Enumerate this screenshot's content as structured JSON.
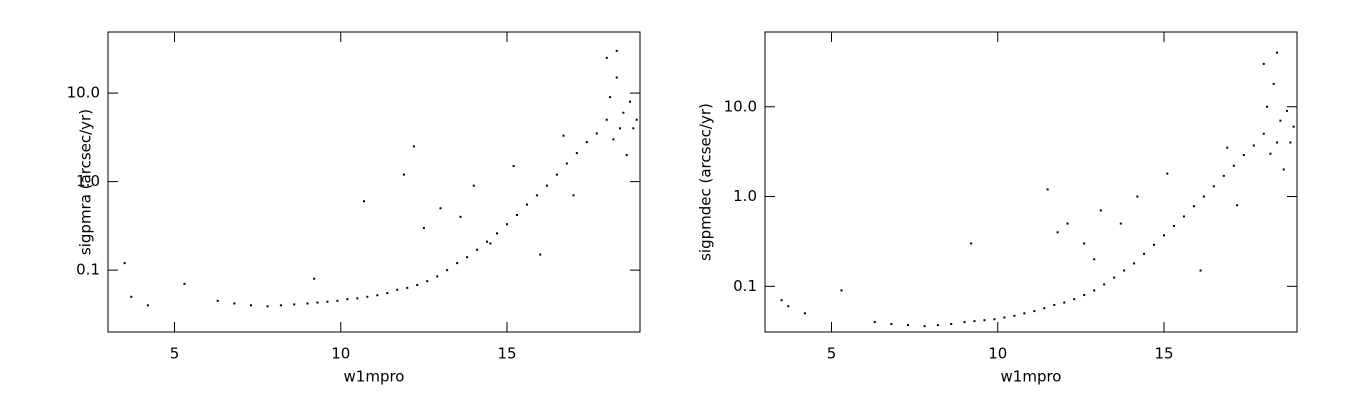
{
  "chart_data": [
    {
      "type": "scatter",
      "x_label": "w1mpro",
      "y_label": "sigpmra (arcsec/yr)",
      "log_y": true,
      "color": "#000000",
      "xlim": [
        3,
        19
      ],
      "xticks": [
        5,
        10,
        15
      ],
      "ylim": [
        0.02,
        49
      ],
      "yticks": [
        0.1,
        {
          "value": 1,
          "label": "1.0"
        },
        {
          "value": 10,
          "label": "10.0"
        }
      ],
      "x": [
        3.5,
        3.7,
        4.2,
        5.3,
        6.3,
        6.8,
        7.3,
        7.8,
        8.2,
        8.6,
        9.0,
        9.3,
        9.6,
        9.9,
        10.2,
        10.5,
        10.8,
        11.1,
        11.4,
        11.7,
        12.0,
        12.3,
        12.6,
        12.9,
        13.2,
        13.5,
        13.8,
        14.1,
        14.4,
        14.7,
        15.0,
        15.3,
        15.6,
        15.9,
        16.2,
        16.5,
        16.8,
        17.1,
        17.4,
        17.7,
        18.0,
        18.1,
        18.2,
        18.3,
        18.4,
        18.5,
        18.6,
        18.7,
        18.8,
        18.9,
        10.7,
        11.9,
        12.5,
        13.0,
        13.6,
        14.0,
        14.5,
        15.2,
        16.0,
        17.0,
        12.2,
        9.2,
        16.7,
        18.0,
        18.3
      ],
      "y": [
        0.12,
        0.05,
        0.04,
        0.07,
        0.045,
        0.042,
        0.04,
        0.039,
        0.04,
        0.041,
        0.042,
        0.043,
        0.044,
        0.045,
        0.047,
        0.048,
        0.05,
        0.052,
        0.055,
        0.06,
        0.063,
        0.068,
        0.075,
        0.085,
        0.1,
        0.12,
        0.14,
        0.17,
        0.21,
        0.26,
        0.33,
        0.42,
        0.55,
        0.7,
        0.9,
        1.2,
        1.6,
        2.1,
        2.8,
        3.5,
        5,
        9,
        3,
        15,
        4,
        6,
        2,
        8,
        4,
        5,
        0.6,
        1.2,
        0.3,
        0.5,
        0.4,
        0.9,
        0.2,
        1.5,
        0.15,
        0.7,
        2.5,
        0.08,
        3.3,
        25,
        30
      ]
    },
    {
      "type": "scatter",
      "x_label": "w1mpro",
      "y_label": "sigpmdec (arcsec/yr)",
      "log_y": true,
      "color": "#000000",
      "xlim": [
        3,
        19
      ],
      "xticks": [
        5,
        10,
        15
      ],
      "ylim": [
        0.031,
        68
      ],
      "yticks": [
        0.1,
        {
          "value": 1,
          "label": "1.0"
        },
        {
          "value": 10,
          "label": "10.0"
        }
      ],
      "x": [
        3.5,
        3.7,
        4.2,
        5.3,
        6.3,
        6.8,
        7.3,
        7.8,
        8.2,
        8.6,
        9.0,
        9.3,
        9.6,
        9.9,
        10.2,
        10.5,
        10.8,
        11.1,
        11.4,
        11.7,
        12.0,
        12.3,
        12.6,
        12.9,
        13.2,
        13.5,
        13.8,
        14.1,
        14.4,
        14.7,
        15.0,
        15.3,
        15.6,
        15.9,
        16.2,
        16.5,
        16.8,
        17.1,
        17.4,
        17.7,
        18.0,
        18.1,
        18.2,
        18.3,
        18.4,
        18.5,
        18.6,
        18.7,
        18.8,
        18.9,
        11.5,
        12.1,
        12.6,
        13.1,
        13.7,
        14.2,
        12.9,
        15.1,
        16.1,
        17.2,
        11.8,
        9.2,
        16.9,
        18.0,
        18.4
      ],
      "y": [
        0.07,
        0.06,
        0.05,
        0.09,
        0.04,
        0.038,
        0.037,
        0.036,
        0.037,
        0.038,
        0.04,
        0.041,
        0.042,
        0.043,
        0.045,
        0.047,
        0.05,
        0.053,
        0.057,
        0.062,
        0.066,
        0.072,
        0.08,
        0.09,
        0.105,
        0.125,
        0.15,
        0.18,
        0.23,
        0.29,
        0.37,
        0.47,
        0.6,
        0.78,
        1.0,
        1.3,
        1.7,
        2.2,
        2.9,
        3.7,
        5,
        10,
        3,
        18,
        4,
        7,
        2,
        9,
        4,
        6,
        1.2,
        0.5,
        0.3,
        0.7,
        0.5,
        1.0,
        0.2,
        1.8,
        0.15,
        0.8,
        0.4,
        0.3,
        3.5,
        30,
        40
      ]
    }
  ]
}
